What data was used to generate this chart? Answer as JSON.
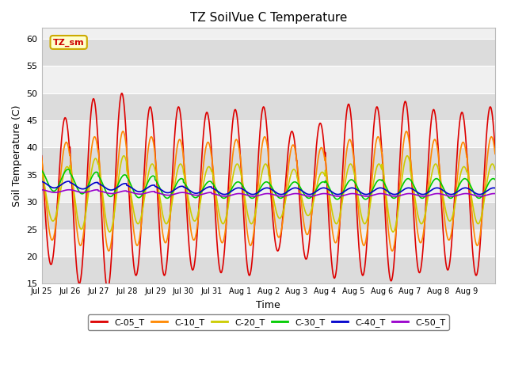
{
  "title": "TZ SoilVue C Temperature",
  "xlabel": "Time",
  "ylabel": "Soil Temperature (C)",
  "ylim": [
    15,
    62
  ],
  "yticks": [
    15,
    20,
    25,
    30,
    35,
    40,
    45,
    50,
    55,
    60
  ],
  "fig_bg": "#ffffff",
  "plot_bg_light": "#f0f0f0",
  "plot_bg_dark": "#dcdcdc",
  "annotation_text": "TZ_sm",
  "annotation_color": "#cc0000",
  "annotation_bg": "#ffffcc",
  "annotation_border": "#ccaa00",
  "series": {
    "C-05_T": {
      "color": "#dd0000",
      "lw": 1.2
    },
    "C-10_T": {
      "color": "#ff8800",
      "lw": 1.2
    },
    "C-20_T": {
      "color": "#cccc00",
      "lw": 1.2
    },
    "C-30_T": {
      "color": "#00cc00",
      "lw": 1.2
    },
    "C-40_T": {
      "color": "#0000cc",
      "lw": 1.2
    },
    "C-50_T": {
      "color": "#9900cc",
      "lw": 1.2
    }
  },
  "tick_labels": [
    "Jul 25",
    "Jul 26",
    "Jul 27",
    "Jul 28",
    "Jul 29",
    "Jul 30",
    "Jul 31",
    "Aug 1",
    "Aug 2",
    "Aug 3",
    "Aug 4",
    "Aug 5",
    "Aug 6",
    "Aug 7",
    "Aug 8",
    "Aug 9"
  ],
  "num_days": 16,
  "points_per_day": 96
}
